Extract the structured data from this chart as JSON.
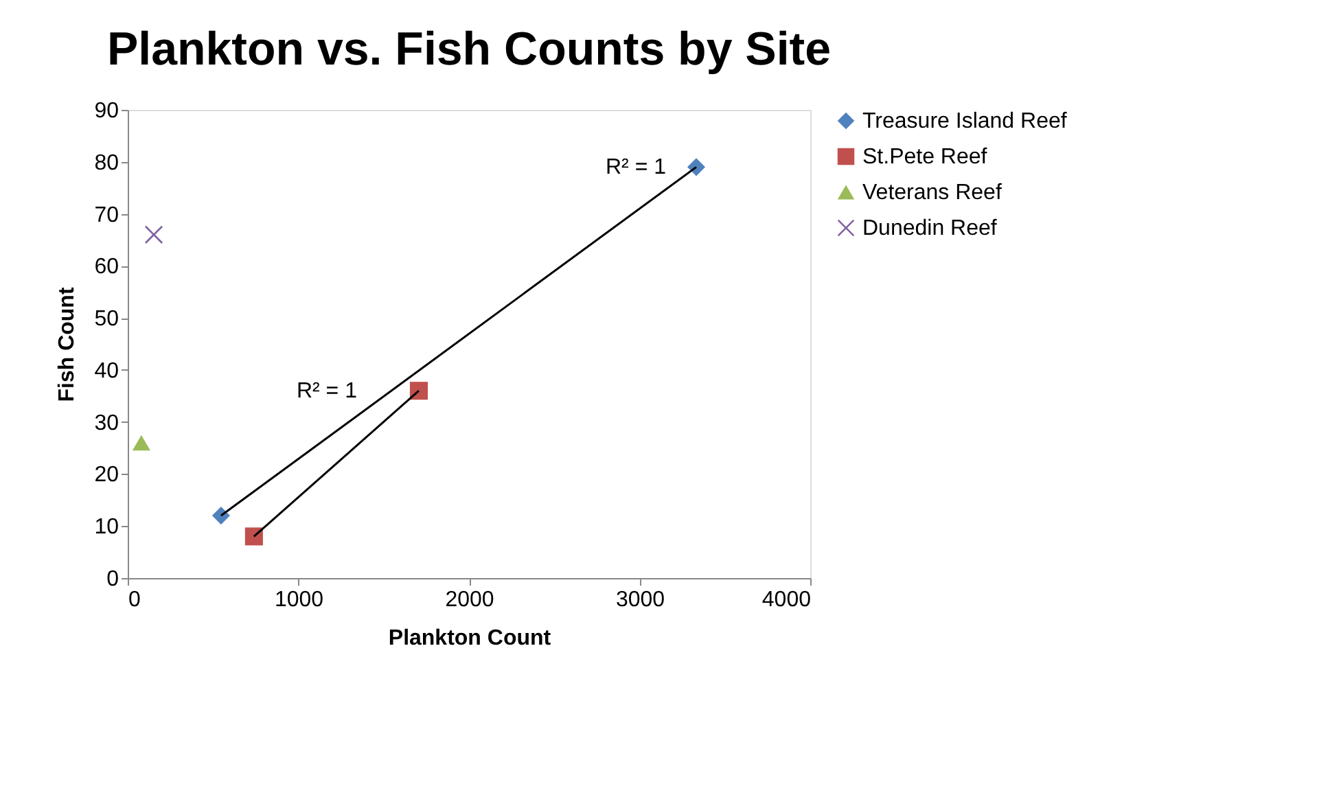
{
  "chart_data": {
    "type": "scatter",
    "title": "Plankton vs. Fish Counts by Site",
    "xlabel": "Plankton Count",
    "ylabel": "Fish Count",
    "xlim": [
      0,
      4000
    ],
    "xticks": [
      0,
      1000,
      2000,
      3000,
      4000
    ],
    "ylim": [
      0,
      90
    ],
    "yticks": [
      0,
      10,
      20,
      30,
      40,
      50,
      60,
      70,
      80,
      90
    ],
    "legend": "right",
    "series": [
      {
        "name": "Treasure Island Reef",
        "color": "#4f81bd",
        "marker": "diamond",
        "x": [
          547,
          3332
        ],
        "values": [
          12,
          79
        ]
      },
      {
        "name": "St.Pete Reef",
        "color": "#c0504d",
        "marker": "square",
        "x": [
          740,
          1706
        ],
        "values": [
          8,
          36
        ]
      },
      {
        "name": "Veterans Reef",
        "color": "#9bbb59",
        "marker": "triangle",
        "x": [
          80
        ],
        "values": [
          26
        ]
      },
      {
        "name": "Dunedin Reef",
        "color": "#8064a2",
        "marker": "cross",
        "x": [
          153
        ],
        "values": [
          66
        ]
      },
      {
        "type": "line",
        "color": "#000000",
        "line_style": "solid",
        "marker": "none",
        "x": [
          547,
          3332
        ],
        "values": [
          12,
          79
        ]
      },
      {
        "type": "line",
        "color": "#000000",
        "line_style": "solid",
        "marker": "none",
        "x": [
          740,
          1706
        ],
        "values": [
          8,
          36
        ]
      }
    ],
    "annotations": [
      "R² = 1",
      "R² = 1"
    ]
  }
}
